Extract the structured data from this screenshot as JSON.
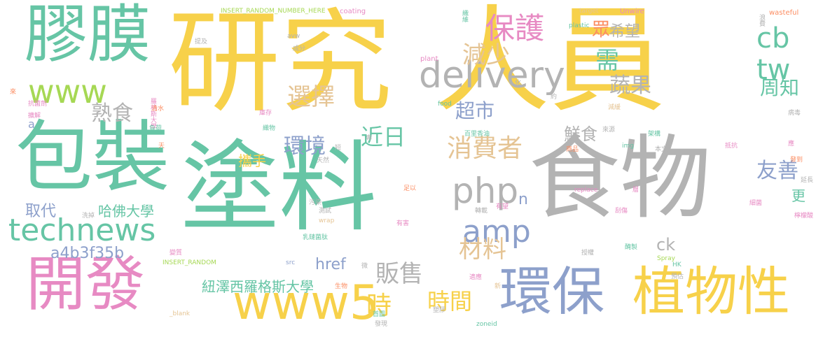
{
  "palette": {
    "yellow": "#f7d14a",
    "gray": "#b3b3b3",
    "teal": "#66c5a5",
    "pink": "#e78ac3",
    "blue": "#8da0cb",
    "tan": "#e5c494",
    "lime": "#a6d854",
    "orange": "#fc8d62"
  },
  "words": [
    {
      "text": "研究",
      "c": "yellow"
    },
    {
      "text": "人員",
      "c": "yellow"
    },
    {
      "text": "食物",
      "c": "gray"
    },
    {
      "text": "塗料",
      "c": "teal"
    },
    {
      "text": "包裝",
      "c": "teal"
    },
    {
      "text": "膠膜",
      "c": "teal"
    },
    {
      "text": "開發",
      "c": "pink"
    },
    {
      "text": "環保",
      "c": "blue"
    },
    {
      "text": "植物性",
      "c": "yellow"
    },
    {
      "text": "www5",
      "c": "yellow"
    },
    {
      "text": "www",
      "c": "lime"
    },
    {
      "text": "technews",
      "c": "teal"
    },
    {
      "text": "delivery",
      "c": "gray"
    },
    {
      "text": "保護",
      "c": "pink"
    },
    {
      "text": "cb",
      "c": "teal"
    },
    {
      "text": "tw",
      "c": "teal"
    },
    {
      "text": "減少",
      "c": "tan"
    },
    {
      "text": "需",
      "c": "teal"
    },
    {
      "text": "眾",
      "c": "orange"
    },
    {
      "text": "希望",
      "c": "gray"
    },
    {
      "text": "選擇",
      "c": "tan"
    },
    {
      "text": "超市",
      "c": "blue"
    },
    {
      "text": "蔬果",
      "c": "gray"
    },
    {
      "text": "周知",
      "c": "teal"
    },
    {
      "text": "熟食",
      "c": "gray"
    },
    {
      "text": "近日",
      "c": "teal"
    },
    {
      "text": "環境",
      "c": "blue"
    },
    {
      "text": "消費者",
      "c": "tan"
    },
    {
      "text": "鮮食",
      "c": "gray"
    },
    {
      "text": "攜手",
      "c": "yellow"
    },
    {
      "text": "友善",
      "c": "blue"
    },
    {
      "text": "php",
      "c": "gray"
    },
    {
      "text": "amp",
      "c": "blue"
    },
    {
      "text": "材料",
      "c": "tan"
    },
    {
      "text": "n",
      "c": "blue"
    },
    {
      "text": "取代",
      "c": "blue"
    },
    {
      "text": "哈佛大學",
      "c": "teal"
    },
    {
      "text": "a4b3f35b",
      "c": "blue"
    },
    {
      "text": "href",
      "c": "blue"
    },
    {
      "text": "販售",
      "c": "gray"
    },
    {
      "text": "時間",
      "c": "yellow"
    },
    {
      "text": "紐澤西羅格斯大學",
      "c": "teal"
    },
    {
      "text": "時",
      "c": "yellow"
    },
    {
      "text": "ck",
      "c": "gray"
    },
    {
      "text": "更",
      "c": "teal"
    },
    {
      "text": "a",
      "c": "blue"
    },
    {
      "text": "INSERT_RANDOM_NUMBER_HERE",
      "c": "lime"
    },
    {
      "text": "coating",
      "c": "pink"
    },
    {
      "text": "target",
      "c": "tan"
    },
    {
      "text": "Unwire",
      "c": "pink"
    },
    {
      "text": "wasteful",
      "c": "orange"
    },
    {
      "text": "plastic",
      "c": "teal"
    },
    {
      "text": "plant",
      "c": "pink"
    },
    {
      "text": "avw",
      "c": "gray"
    },
    {
      "text": "成分",
      "c": "gray"
    },
    {
      "text": "提及",
      "c": "gray"
    },
    {
      "text": "織維",
      "c": "teal"
    },
    {
      "text": "浪費",
      "c": "gray"
    },
    {
      "text": "羅格斯大學",
      "c": "pink"
    },
    {
      "text": "抗菌劑",
      "c": "pink"
    },
    {
      "text": "擴解",
      "c": "pink"
    },
    {
      "text": "清水",
      "c": "orange"
    },
    {
      "text": "負荷",
      "c": "teal"
    },
    {
      "text": "天",
      "c": "orange"
    },
    {
      "text": "庫存",
      "c": "pink"
    },
    {
      "text": "織物",
      "c": "teal"
    },
    {
      "text": "天然",
      "c": "gray"
    },
    {
      "text": "food",
      "c": "teal"
    },
    {
      "text": "減緩",
      "c": "tan"
    },
    {
      "text": "病毒",
      "c": "gray"
    },
    {
      "text": "百里香油",
      "c": "teal"
    },
    {
      "text": "來源",
      "c": "gray"
    },
    {
      "text": "架構",
      "c": "teal"
    },
    {
      "text": "img",
      "c": "teal"
    },
    {
      "text": "本文",
      "c": "gray"
    },
    {
      "text": "商品",
      "c": "orange"
    },
    {
      "text": "抵抗",
      "c": "pink"
    },
    {
      "text": "延長",
      "c": "gray"
    },
    {
      "text": "replace",
      "c": "pink"
    },
    {
      "text": "足以",
      "c": "orange"
    },
    {
      "text": "污染",
      "c": "gray"
    },
    {
      "text": "測試",
      "c": "gray"
    },
    {
      "text": "轉載",
      "c": "gray"
    },
    {
      "text": "有望",
      "c": "pink"
    },
    {
      "text": "細菌",
      "c": "pink"
    },
    {
      "text": "wrap",
      "c": "tan"
    },
    {
      "text": "有害",
      "c": "pink"
    },
    {
      "text": "刮傷",
      "c": "pink"
    },
    {
      "text": "檸檬酸",
      "c": "pink"
    },
    {
      "text": "洗掉",
      "c": "gray"
    },
    {
      "text": "乳鏈菌肽",
      "c": "teal"
    },
    {
      "text": "授權",
      "c": "gray"
    },
    {
      "text": "醃製",
      "c": "teal"
    },
    {
      "text": "變質",
      "c": "pink"
    },
    {
      "text": "INSERT_RANDOM",
      "c": "lime"
    },
    {
      "text": "src",
      "c": "blue"
    },
    {
      "text": "Spray",
      "c": "lime"
    },
    {
      "text": "HK",
      "c": "teal"
    },
    {
      "text": "適應",
      "c": "pink"
    },
    {
      "text": "預估",
      "c": "gray"
    },
    {
      "text": "生物",
      "c": "orange"
    },
    {
      "text": "首圖",
      "c": "teal"
    },
    {
      "text": "塑膠",
      "c": "gray"
    },
    {
      "text": "_blank",
      "c": "tan"
    },
    {
      "text": "發現",
      "c": "gray"
    },
    {
      "text": "zoneid",
      "c": "teal"
    },
    {
      "text": "來",
      "c": "orange"
    },
    {
      "text": "約",
      "c": "gray"
    },
    {
      "text": "化",
      "c": "gray"
    },
    {
      "text": "應",
      "c": "pink"
    },
    {
      "text": "發到",
      "c": "orange"
    },
    {
      "text": "層",
      "c": "pink"
    },
    {
      "text": "微",
      "c": "gray"
    },
    {
      "text": "新",
      "c": "tan"
    },
    {
      "text": "專",
      "c": "gray"
    },
    {
      "text": "短",
      "c": "gray"
    }
  ]
}
